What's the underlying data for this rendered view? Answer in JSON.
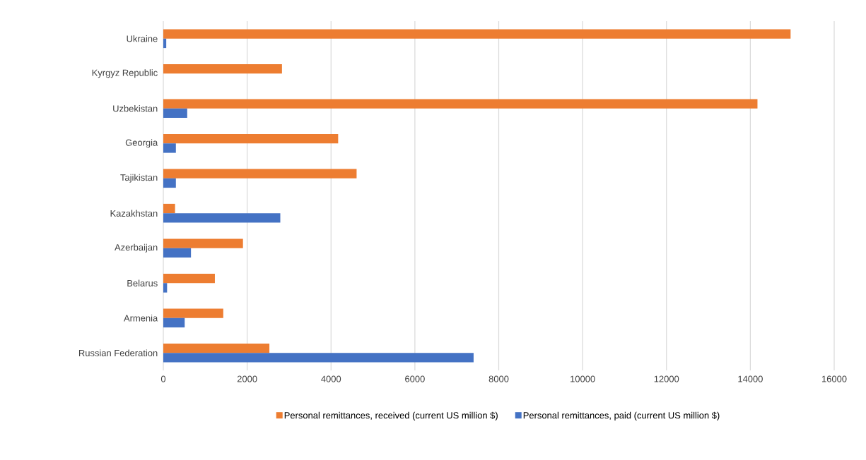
{
  "chart_data": {
    "type": "bar",
    "orientation": "horizontal",
    "categories": [
      "Ukraine",
      "Kyrgyz Republic",
      "Uzbekistan",
      "Georgia",
      "Tajikistan",
      "Kazakhstan",
      "Azerbaijan",
      "Belarus",
      "Armenia",
      "Russian Federation"
    ],
    "series": [
      {
        "name": "Personal remittances, received (current US million $)",
        "color": "#ed7d31",
        "values": [
          14960,
          2830,
          14170,
          4170,
          4610,
          280,
          1900,
          1230,
          1430,
          2530
        ]
      },
      {
        "name": "Personal remittances, paid (current US million $)",
        "color": "#4472c4",
        "values": [
          70,
          null,
          570,
          300,
          300,
          2790,
          660,
          90,
          510,
          7400
        ]
      }
    ],
    "xlim": [
      0,
      16000
    ],
    "xticks": [
      0,
      2000,
      4000,
      6000,
      8000,
      10000,
      12000,
      14000,
      16000
    ],
    "grid": "x",
    "legend": "bottom"
  }
}
